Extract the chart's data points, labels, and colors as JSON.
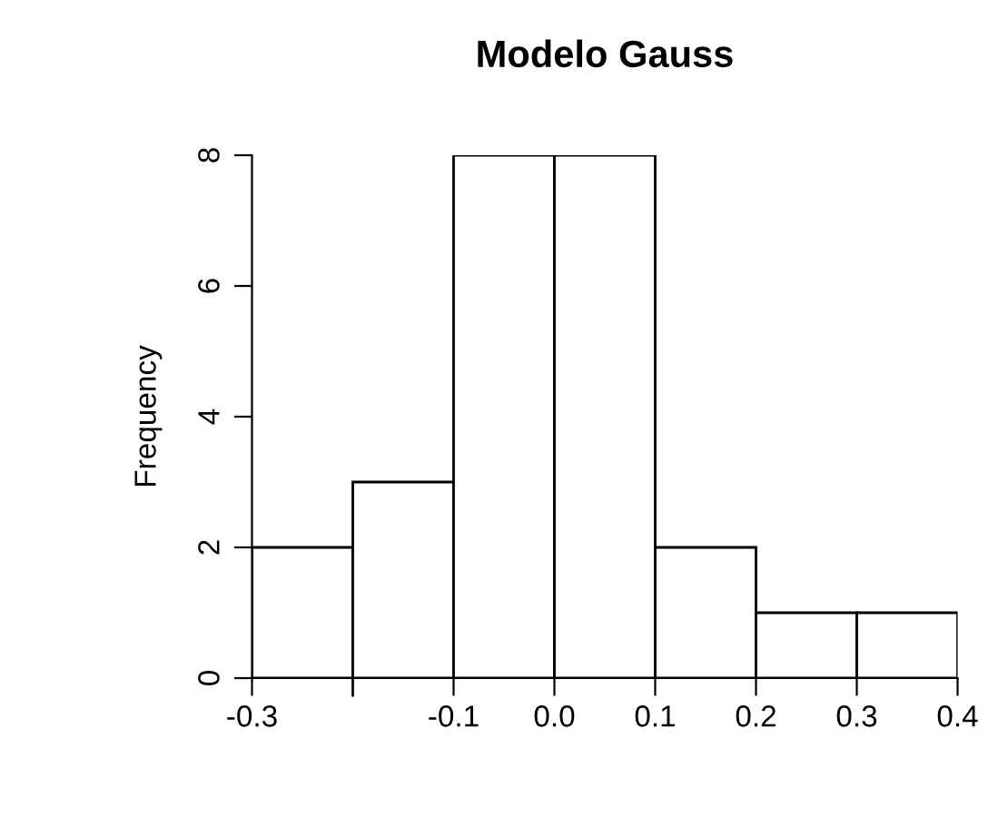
{
  "chart_data": {
    "type": "histogram",
    "title": "Modelo Gauss",
    "ylabel": "Frequency",
    "bins": [
      -0.3,
      -0.2,
      -0.1,
      0.0,
      0.1,
      0.2,
      0.3,
      0.4
    ],
    "values": [
      2,
      3,
      8,
      8,
      2,
      1,
      1
    ],
    "color": "#ffffff",
    "xlim": [
      -0.3,
      0.4
    ],
    "ylim": [
      0,
      8
    ],
    "xticks": [
      -0.3,
      {
        "value": -0.2,
        "label": null
      },
      -0.1,
      {
        "value": 0.0,
        "label": "0.0"
      },
      0.1,
      0.2,
      0.3,
      0.4
    ],
    "yticks": [
      0,
      2,
      4,
      6,
      8
    ],
    "grid": false,
    "legend": false
  }
}
